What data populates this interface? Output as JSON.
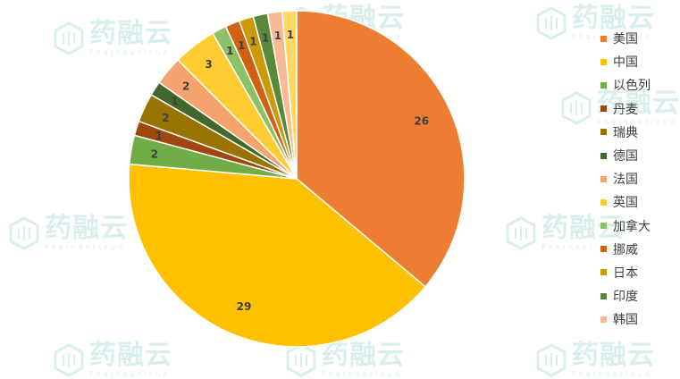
{
  "watermark": {
    "main_text": "药融云",
    "sub_text": "Pharnexcloud"
  },
  "chart_data": {
    "type": "pie",
    "title": "",
    "start_angle_deg": 0,
    "direction": "clockwise",
    "legend_position": "right",
    "slices": [
      {
        "label": "美国",
        "value": 26,
        "color": "#ED7D31"
      },
      {
        "label": "中国",
        "value": 29,
        "color": "#FFC000"
      },
      {
        "label": "以色列",
        "value": 2,
        "color": "#70AD47"
      },
      {
        "label": "丹麦",
        "value": 1,
        "color": "#9E480E"
      },
      {
        "label": "瑞典",
        "value": 2,
        "color": "#997300"
      },
      {
        "label": "德国",
        "value": 1,
        "color": "#43682B"
      },
      {
        "label": "法国",
        "value": 2,
        "color": "#F4A46C"
      },
      {
        "label": "英国",
        "value": 3,
        "color": "#FFCD33"
      },
      {
        "label": "加拿大",
        "value": 1,
        "color": "#8CC168"
      },
      {
        "label": "挪威",
        "value": 1,
        "color": "#D26012"
      },
      {
        "label": "日本",
        "value": 1,
        "color": "#CC9A06"
      },
      {
        "label": "印度",
        "value": 1,
        "color": "#5A8A39"
      },
      {
        "label": "韩国",
        "value": 1,
        "color": "#F8BA94"
      },
      {
        "label": "",
        "value": 1,
        "color": "#FFD966"
      }
    ]
  }
}
